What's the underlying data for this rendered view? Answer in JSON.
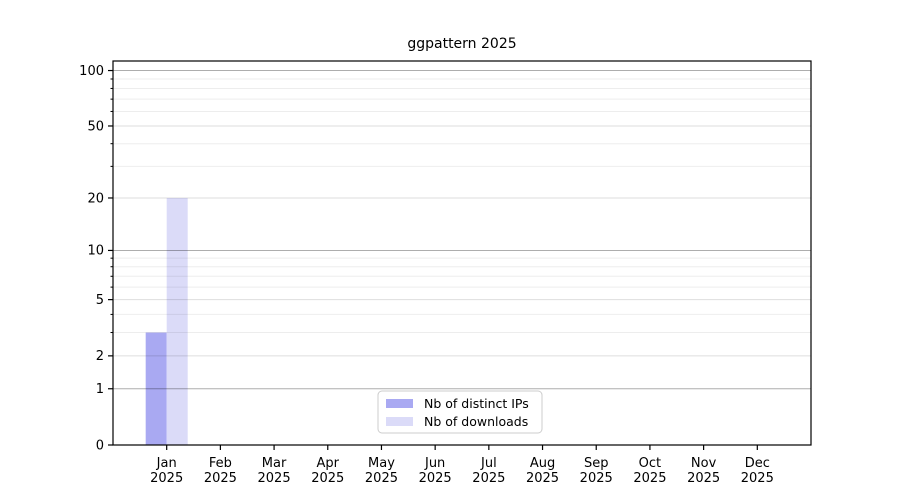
{
  "chart_data": {
    "type": "bar",
    "title": "ggpattern 2025",
    "x_categories": [
      "Jan",
      "Feb",
      "Mar",
      "Apr",
      "May",
      "Jun",
      "Jul",
      "Aug",
      "Sep",
      "Oct",
      "Nov",
      "Dec"
    ],
    "x_year": "2025",
    "series": [
      {
        "name": "Nb of distinct IPs",
        "color": "#a9a9f2",
        "values": [
          3,
          0,
          0,
          0,
          0,
          0,
          0,
          0,
          0,
          0,
          0,
          0
        ]
      },
      {
        "name": "Nb of downloads",
        "color": "#dbdbf8",
        "values": [
          20,
          0,
          0,
          0,
          0,
          0,
          0,
          0,
          0,
          0,
          0,
          0
        ]
      }
    ],
    "yscale": "log1p",
    "ylim": [
      0,
      112.6
    ],
    "yticks": [
      0,
      1,
      2,
      5,
      10,
      20,
      50,
      100
    ],
    "yticks_emphasis": [
      1,
      10,
      100
    ],
    "yminor": [
      3,
      4,
      6,
      7,
      8,
      9,
      30,
      40,
      60,
      70,
      80,
      90
    ],
    "grid": true,
    "legend_position": "inside-bottom-center"
  },
  "colors": {
    "spine": "#000000",
    "grid_major": "rgba(0,0,0,0.32)",
    "grid_mid": "rgba(0,0,0,0.13)",
    "grid_minor": "rgba(0,0,0,0.07)",
    "legend_border": "#cccccc",
    "legend_bg": "#ffffff",
    "text": "#000000"
  }
}
